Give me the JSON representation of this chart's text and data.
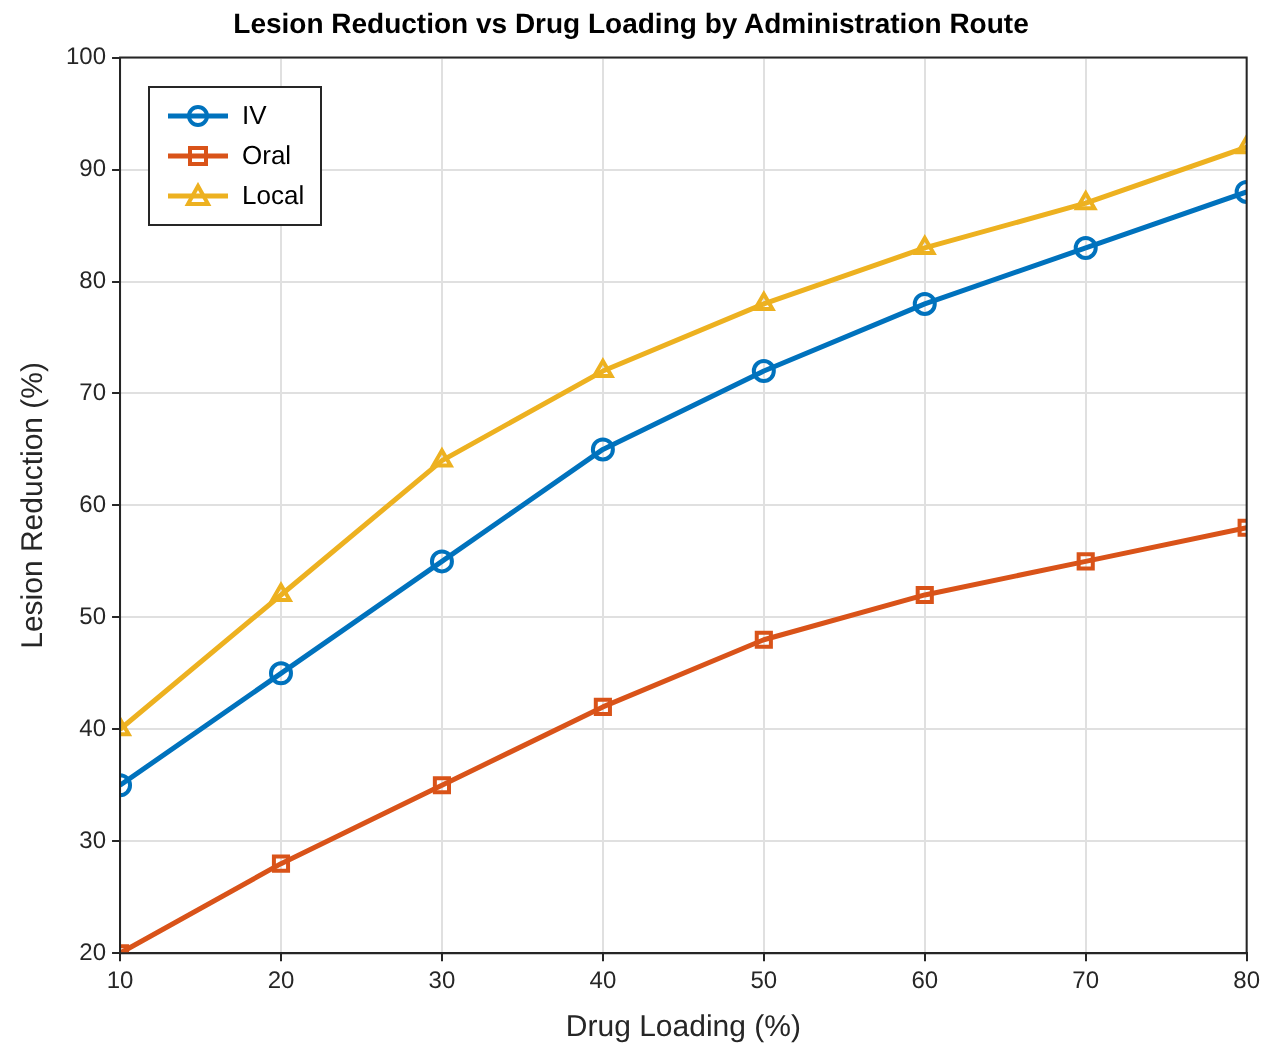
{
  "chart_data": {
    "type": "line",
    "title": "Lesion Reduction vs Drug Loading by Administration Route",
    "xlabel": "Drug Loading (%)",
    "ylabel": "Lesion Reduction (%)",
    "x": [
      10,
      20,
      30,
      40,
      50,
      60,
      70,
      80
    ],
    "series": [
      {
        "name": "IV",
        "color": "#0072bd",
        "marker": "circle",
        "values": [
          35,
          45,
          55,
          65,
          72,
          78,
          83,
          88
        ]
      },
      {
        "name": "Oral",
        "color": "#d95319",
        "marker": "square",
        "values": [
          20,
          28,
          35,
          42,
          48,
          52,
          55,
          58
        ]
      },
      {
        "name": "Local",
        "color": "#edb120",
        "marker": "triangle",
        "values": [
          40,
          52,
          64,
          72,
          78,
          83,
          87,
          92
        ]
      }
    ],
    "xlim": [
      10,
      80
    ],
    "xticks": [
      10,
      20,
      30,
      40,
      50,
      60,
      70,
      80
    ],
    "ylim": [
      20,
      100
    ],
    "yticks": [
      20,
      30,
      40,
      50,
      60,
      70,
      80,
      90,
      100
    ],
    "grid": true,
    "legend": "top left",
    "line_style": "solid"
  }
}
